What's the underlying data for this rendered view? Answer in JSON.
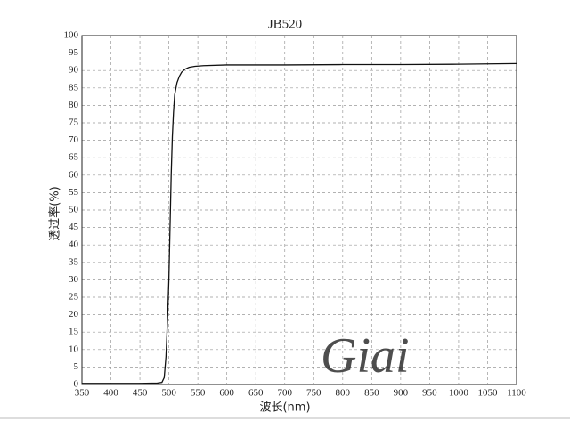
{
  "chart_data": {
    "type": "line",
    "title": "JB520",
    "x_label": "波长(nm)",
    "y_label": "透过率(%)",
    "watermark": "Giai",
    "x": [
      350,
      400,
      450,
      480,
      488,
      492,
      495,
      498,
      500,
      502,
      504,
      506,
      508,
      510,
      514,
      518,
      522,
      528,
      535,
      545,
      560,
      600,
      700,
      800,
      900,
      1000,
      1100
    ],
    "series": [
      {
        "name": "JB520",
        "color": "#111111",
        "values": [
          0.3,
          0.3,
          0.3,
          0.4,
          0.6,
          2,
          8,
          20,
          30,
          45,
          60,
          71,
          78,
          83,
          86.5,
          88.3,
          89.5,
          90.4,
          90.9,
          91.2,
          91.4,
          91.6,
          91.6,
          91.7,
          91.7,
          91.8,
          92
        ]
      }
    ],
    "xlim": [
      350,
      1100
    ],
    "xticks": [
      350,
      400,
      450,
      500,
      550,
      600,
      650,
      700,
      750,
      800,
      850,
      900,
      950,
      1000,
      1050,
      1100
    ],
    "ylim": [
      0,
      100
    ],
    "yticks": [
      0,
      5,
      10,
      15,
      20,
      25,
      30,
      35,
      40,
      45,
      50,
      55,
      60,
      65,
      70,
      75,
      80,
      85,
      90,
      95,
      100
    ],
    "grid": true
  }
}
